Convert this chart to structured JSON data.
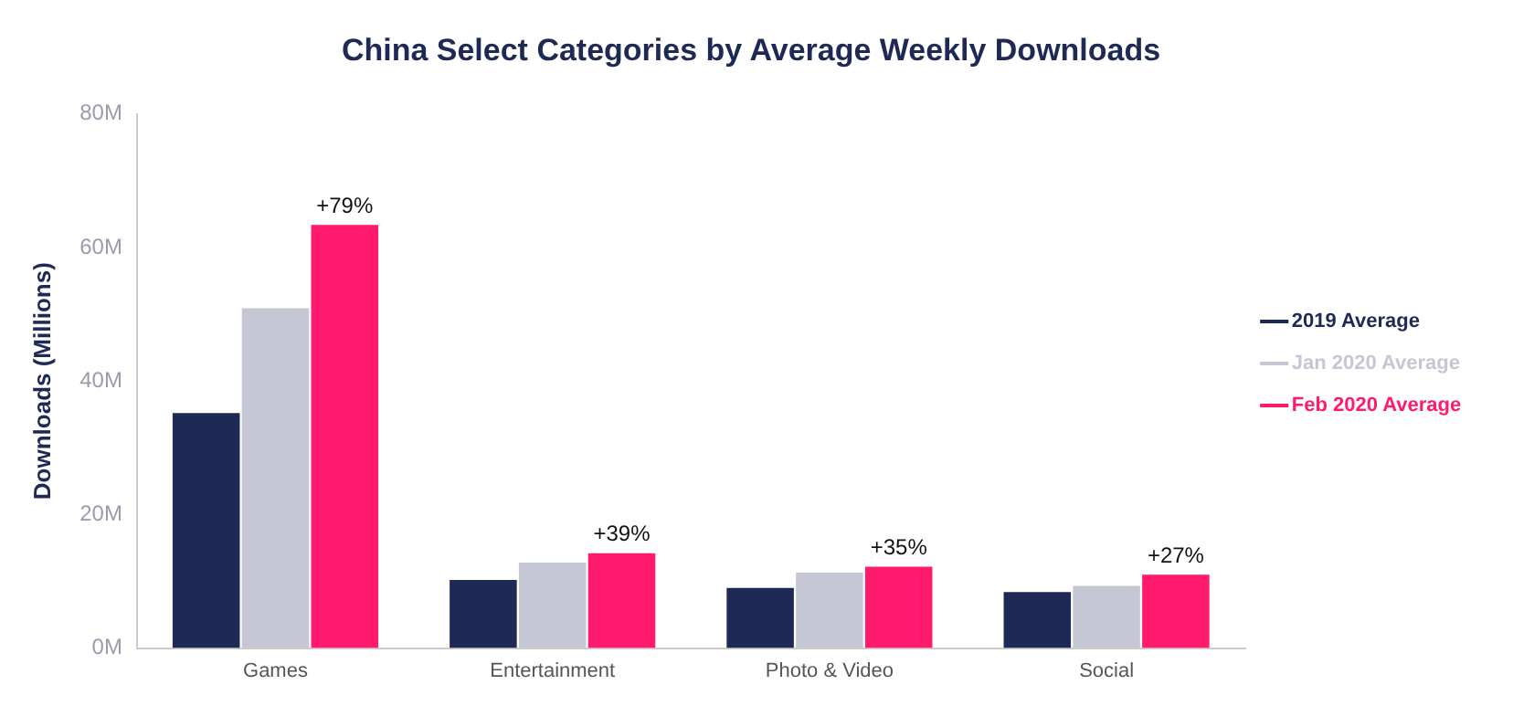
{
  "chart_data": {
    "type": "bar",
    "title": "China Select Categories by Average Weekly Downloads",
    "ylabel": "Downloads (Millions)",
    "categories": [
      "Games",
      "Entertainment",
      "Photo & Video",
      "Social"
    ],
    "series": [
      {
        "name": "2019 Average",
        "color": "#1e2a55",
        "values": [
          35.2,
          10.2,
          9.0,
          8.4
        ]
      },
      {
        "name": "Jan 2020 Average",
        "color": "#c5c8d4",
        "values": [
          50.9,
          12.8,
          11.3,
          9.3
        ]
      },
      {
        "name": "Feb 2020 Average",
        "color": "#ff1a6e",
        "values": [
          63.4,
          14.2,
          12.2,
          11.0
        ]
      }
    ],
    "annotations": [
      "+79%",
      "+39%",
      "+35%",
      "+27%"
    ],
    "ylim": [
      0,
      80
    ],
    "yticks": [
      {
        "value": 0,
        "label": "0M"
      },
      {
        "value": 20,
        "label": "20M"
      },
      {
        "value": 40,
        "label": "40M"
      },
      {
        "value": 60,
        "label": "60M"
      },
      {
        "value": 80,
        "label": "80M"
      }
    ],
    "grid": false,
    "legend": "right"
  }
}
